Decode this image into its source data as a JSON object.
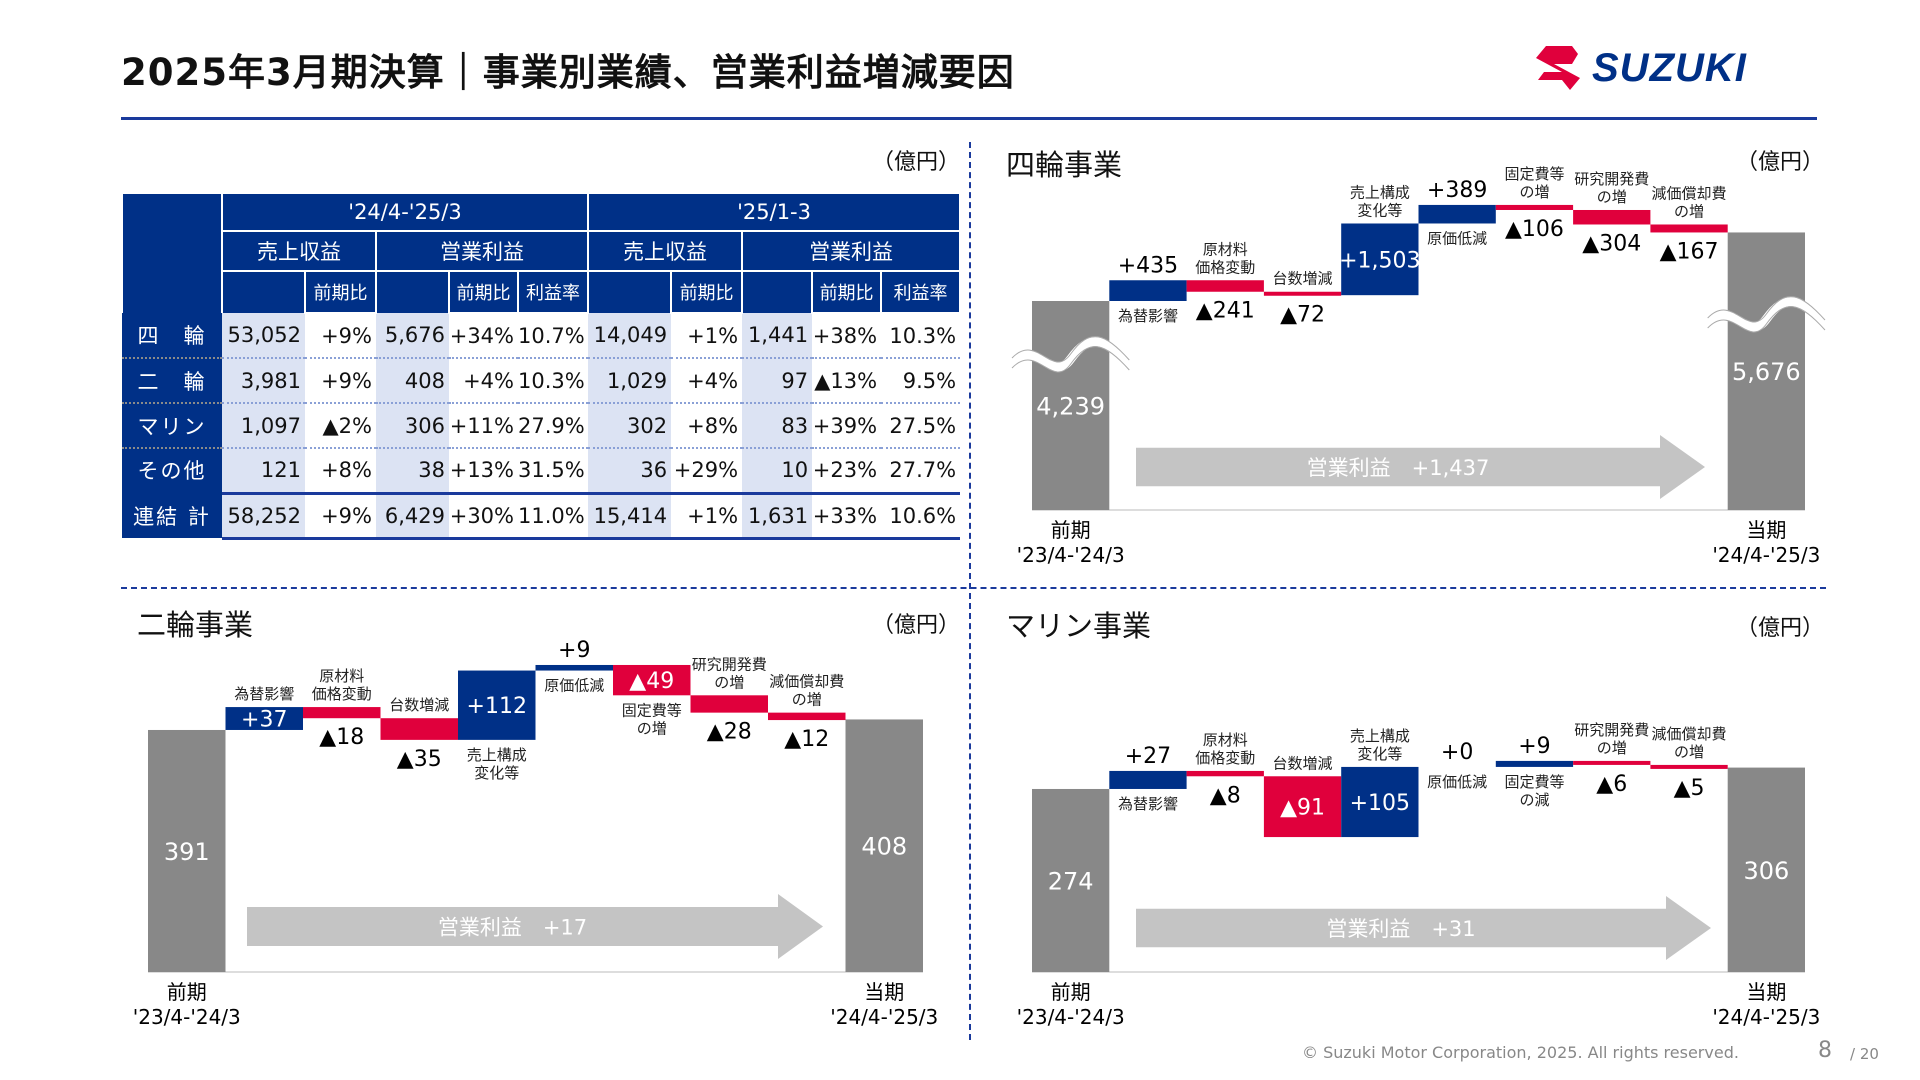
{
  "header": {
    "title": "2025年3月期決算｜事業別業績、営業利益増減要因",
    "brand": "SUZUKI"
  },
  "colors": {
    "navy": "#003087",
    "red": "#e0003c",
    "gray": "#888888",
    "arrow": "#c4c4c4"
  },
  "table": {
    "unit": "（億円）",
    "periods": [
      "'24/4-'25/3",
      "'25/1-3"
    ],
    "groups": [
      "売上収益",
      "営業利益"
    ],
    "sub": {
      "yoy": "前期比",
      "margin": "利益率"
    },
    "rows": [
      {
        "label": "四　輪",
        "cells": [
          "53,052",
          "+9%",
          "5,676",
          "+34%",
          "10.7%",
          "14,049",
          "+1%",
          "1,441",
          "+38%",
          "10.3%"
        ]
      },
      {
        "label": "二　輪",
        "cells": [
          "3,981",
          "+9%",
          "408",
          "+4%",
          "10.3%",
          "1,029",
          "+4%",
          "97",
          "▲13%",
          "9.5%"
        ]
      },
      {
        "label": "マリン",
        "cells": [
          "1,097",
          "▲2%",
          "306",
          "+11%",
          "27.9%",
          "302",
          "+8%",
          "83",
          "+39%",
          "27.5%"
        ]
      },
      {
        "label": "その他",
        "cells": [
          "121",
          "+8%",
          "38",
          "+13%",
          "31.5%",
          "36",
          "+29%",
          "10",
          "+23%",
          "27.7%"
        ]
      },
      {
        "label": "連結 計",
        "cells": [
          "58,252",
          "+9%",
          "6,429",
          "+30%",
          "11.0%",
          "15,414",
          "+1%",
          "1,631",
          "+33%",
          "10.6%"
        ]
      }
    ]
  },
  "chart_data": [
    {
      "type": "waterfall",
      "title": "四輪事業",
      "unit": "（億円）",
      "start": {
        "label": "前期",
        "period": "'23/4-'24/3",
        "value": 4239,
        "text": "4,239"
      },
      "end": {
        "label": "当期",
        "period": "'24/4-'25/3",
        "value": 5676,
        "text": "5,676"
      },
      "axis_break": true,
      "arrow": "営業利益　+1,437",
      "steps": [
        {
          "category": "為替影響",
          "value": 435,
          "text": "+435"
        },
        {
          "category": "原材料\n価格変動",
          "value": -241,
          "text": "▲241"
        },
        {
          "category": "台数増減",
          "value": -72,
          "text": "▲72"
        },
        {
          "category": "売上構成\n変化等",
          "value": 1503,
          "text": "+1,503"
        },
        {
          "category": "原価低減",
          "value": 389,
          "text": "+389"
        },
        {
          "category": "固定費等\nの増",
          "value": -106,
          "text": "▲106"
        },
        {
          "category": "研究開発費\nの増",
          "value": -304,
          "text": "▲304"
        },
        {
          "category": "減価償却費\nの増",
          "value": -167,
          "text": "▲167"
        }
      ]
    },
    {
      "type": "waterfall",
      "title": "二輪事業",
      "unit": "（億円）",
      "start": {
        "label": "前期",
        "period": "'23/4-'24/3",
        "value": 391,
        "text": "391"
      },
      "end": {
        "label": "当期",
        "period": "'24/4-'25/3",
        "value": 408,
        "text": "408"
      },
      "axis_break": false,
      "arrow": "営業利益　+17",
      "steps": [
        {
          "category": "為替影響",
          "value": 37,
          "text": "+37"
        },
        {
          "category": "原材料\n価格変動",
          "value": -18,
          "text": "▲18"
        },
        {
          "category": "台数増減",
          "value": -35,
          "text": "▲35"
        },
        {
          "category": "売上構成\n変化等",
          "value": 112,
          "text": "+112"
        },
        {
          "category": "原価低減",
          "value": 9,
          "text": "+9"
        },
        {
          "category": "固定費等\nの増",
          "value": -49,
          "text": "▲49"
        },
        {
          "category": "研究開発費\nの増",
          "value": -28,
          "text": "▲28"
        },
        {
          "category": "減価償却費\nの増",
          "value": -12,
          "text": "▲12"
        }
      ]
    },
    {
      "type": "waterfall",
      "title": "マリン事業",
      "unit": "（億円）",
      "start": {
        "label": "前期",
        "period": "'23/4-'24/3",
        "value": 274,
        "text": "274"
      },
      "end": {
        "label": "当期",
        "period": "'24/4-'25/3",
        "value": 306,
        "text": "306"
      },
      "axis_break": false,
      "arrow": "営業利益　+31",
      "steps": [
        {
          "category": "為替影響",
          "value": 27,
          "text": "+27"
        },
        {
          "category": "原材料\n価格変動",
          "value": -8,
          "text": "▲8"
        },
        {
          "category": "台数増減",
          "value": -91,
          "text": "▲91"
        },
        {
          "category": "売上構成\n変化等",
          "value": 105,
          "text": "+105"
        },
        {
          "category": "原価低減",
          "value": 0,
          "text": "+0"
        },
        {
          "category": "固定費等\nの減",
          "value": 9,
          "text": "+9"
        },
        {
          "category": "研究開発費\nの増",
          "value": -6,
          "text": "▲6"
        },
        {
          "category": "減価償却費\nの増",
          "value": -5,
          "text": "▲5"
        }
      ]
    }
  ],
  "footer": {
    "copyright": "© Suzuki Motor Corporation, 2025. All rights reserved.",
    "page": "8",
    "total": "/ 20"
  }
}
